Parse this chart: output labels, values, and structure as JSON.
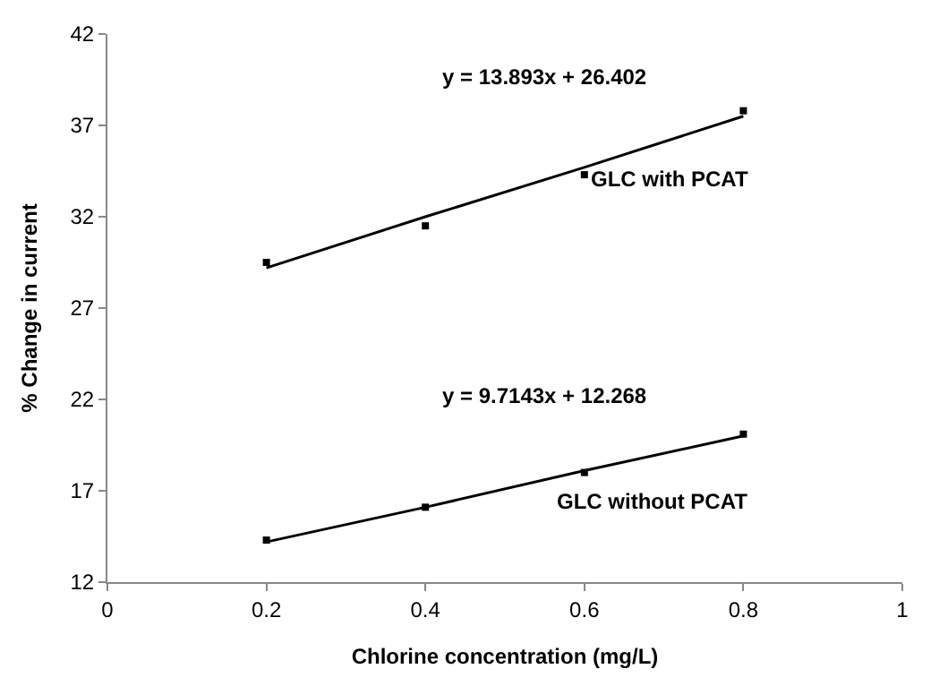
{
  "chart_data": {
    "type": "scatter",
    "xlabel": "Chlorine concentration (mg/L)",
    "ylabel": "% Change in current",
    "x": [
      0.2,
      0.4,
      0.6,
      0.8
    ],
    "series": [
      {
        "name": "GLC with PCAT",
        "color": "#000000",
        "values": [
          29.5,
          31.5,
          34.3,
          37.8
        ]
      },
      {
        "type": "line",
        "color": "#000000",
        "marker": "none",
        "values": [
          29.2,
          32.0,
          34.7,
          37.5
        ]
      },
      {
        "name": "GLC without PCAT",
        "color": "#000000",
        "values": [
          14.3,
          16.1,
          18.0,
          20.1
        ]
      },
      {
        "type": "line",
        "color": "#000000",
        "marker": "none",
        "values": [
          14.2,
          16.1,
          18.1,
          20.0
        ]
      }
    ],
    "annotations": [
      "y = 13.893x + 26.402",
      "y = 9.7143x + 12.268"
    ],
    "xlim": [
      0,
      1
    ],
    "xticks": [
      0,
      0.2,
      0.4,
      0.6,
      0.8,
      1
    ],
    "ylim": [
      12,
      42
    ],
    "yticks": [
      12,
      17,
      22,
      27,
      32,
      37,
      42
    ],
    "legend": false,
    "marker": "square"
  }
}
